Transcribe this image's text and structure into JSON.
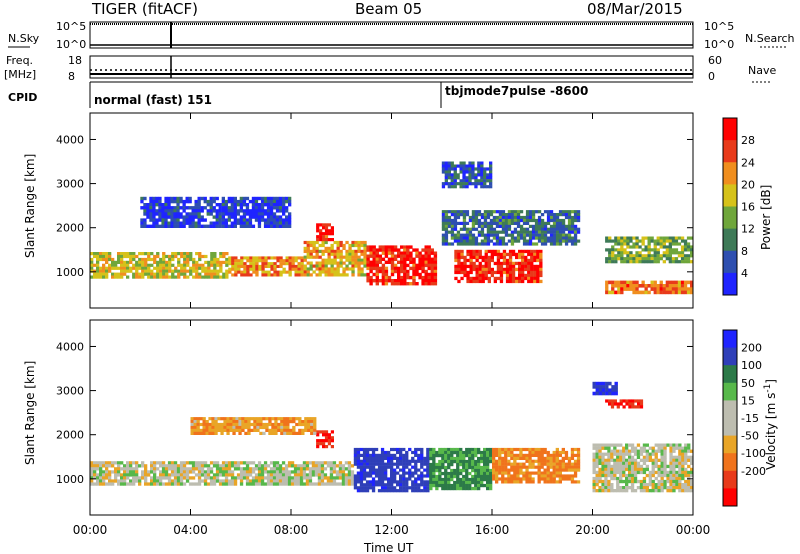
{
  "header": {
    "station": "TIGER (fitACF)",
    "beam": "Beam 05",
    "date": "08/Mar/2015"
  },
  "top_panels": {
    "nsky_label": "N.Sky",
    "nsearch_label": "N.Search",
    "noise_ticks": [
      "10^5",
      "10^0"
    ],
    "freq_label_1": "Freq.",
    "freq_label_2": "[MHz]",
    "freq_ticks": [
      "18",
      "8"
    ],
    "nave_label": "Nave",
    "nave_ticks": [
      "60",
      "0"
    ],
    "cpid_label": "CPID",
    "cpid_segments": [
      {
        "label": "normal (fast) 151",
        "start": 0,
        "end": 14
      },
      {
        "label": "tbjmode7pulse -8600",
        "start": 14,
        "end": 24
      }
    ]
  },
  "power_colorbar": {
    "label": "Power [dB]",
    "ticks": [
      "4",
      "8",
      "12",
      "16",
      "20",
      "24",
      "28"
    ],
    "colors": [
      "#1f24ff",
      "#2e4fb0",
      "#3e7a57",
      "#6fa63b",
      "#d6c21a",
      "#f08e1e",
      "#e83a1a",
      "#ff0000"
    ]
  },
  "velocity_colorbar": {
    "label": "Velocity [m s",
    "label_sup": "-1",
    "label_end": "]",
    "ticks": [
      "200",
      "100",
      "50",
      "15",
      "-15",
      "-50",
      "-100",
      "-200"
    ],
    "colors": [
      "#1f24ff",
      "#2f3fb8",
      "#2c7a48",
      "#57b84a",
      "#bdbdb0",
      "#bdbdb0",
      "#e9a527",
      "#f0731c",
      "#e83a1a",
      "#ff0000"
    ]
  },
  "chart_data": [
    {
      "type": "heatmap",
      "title": "Power",
      "xlabel": "Time UT",
      "ylabel": "Slant Range [km]",
      "x_ticks": [
        "00:00",
        "04:00",
        "08:00",
        "12:00",
        "16:00",
        "20:00",
        "00:00"
      ],
      "xlim": [
        0,
        24
      ],
      "y_ticks": [
        1000,
        2000,
        3000,
        4000
      ],
      "ylim": [
        180,
        4600
      ],
      "blobs": [
        {
          "t0": 0.0,
          "t1": 5.5,
          "r0": 850,
          "r1": 1450,
          "value": 18
        },
        {
          "t0": 5.5,
          "t1": 8.5,
          "r0": 900,
          "r1": 1350,
          "value": 22
        },
        {
          "t0": 8.5,
          "t1": 11.0,
          "r0": 900,
          "r1": 1700,
          "value": 20
        },
        {
          "t0": 9.0,
          "t1": 9.7,
          "r0": 1700,
          "r1": 2100,
          "value": 28
        },
        {
          "t0": 11.0,
          "t1": 13.8,
          "r0": 700,
          "r1": 1600,
          "value": 28
        },
        {
          "t0": 14.5,
          "t1": 18.0,
          "r0": 750,
          "r1": 1500,
          "value": 28
        },
        {
          "t0": 14.0,
          "t1": 19.5,
          "r0": 1600,
          "r1": 2400,
          "value": 8
        },
        {
          "t0": 20.5,
          "t1": 24.0,
          "r0": 1200,
          "r1": 1800,
          "value": 14
        },
        {
          "t0": 20.5,
          "t1": 24.0,
          "r0": 500,
          "r1": 800,
          "value": 24
        },
        {
          "t0": 2.0,
          "t1": 8.0,
          "r0": 2000,
          "r1": 2700,
          "value": 4
        },
        {
          "t0": 14.0,
          "t1": 16.0,
          "r0": 2900,
          "r1": 3500,
          "value": 6
        }
      ]
    },
    {
      "type": "heatmap",
      "title": "Velocity",
      "xlabel": "Time UT",
      "ylabel": "Slant Range [km]",
      "x_ticks": [
        "00:00",
        "04:00",
        "08:00",
        "12:00",
        "16:00",
        "20:00",
        "00:00"
      ],
      "xlim": [
        0,
        24
      ],
      "y_ticks": [
        1000,
        2000,
        3000,
        4000
      ],
      "ylim": [
        180,
        4600
      ],
      "blobs": [
        {
          "t0": 0.0,
          "t1": 10.5,
          "r0": 850,
          "r1": 1400,
          "value": 0
        },
        {
          "t0": 10.5,
          "t1": 13.5,
          "r0": 700,
          "r1": 1700,
          "value": 180
        },
        {
          "t0": 13.5,
          "t1": 16.0,
          "r0": 750,
          "r1": 1700,
          "value": 60
        },
        {
          "t0": 16.0,
          "t1": 19.5,
          "r0": 900,
          "r1": 1700,
          "value": -60
        },
        {
          "t0": 9.0,
          "t1": 9.7,
          "r0": 1700,
          "r1": 2100,
          "value": -200
        },
        {
          "t0": 20.0,
          "t1": 24.0,
          "r0": 700,
          "r1": 1800,
          "value": 0
        },
        {
          "t0": 4.0,
          "t1": 9.0,
          "r0": 2000,
          "r1": 2400,
          "value": -40
        },
        {
          "t0": 20.5,
          "t1": 22.0,
          "r0": 2600,
          "r1": 2800,
          "value": -200
        },
        {
          "t0": 20.0,
          "t1": 21.0,
          "r0": 2900,
          "r1": 3200,
          "value": 200
        }
      ]
    }
  ]
}
